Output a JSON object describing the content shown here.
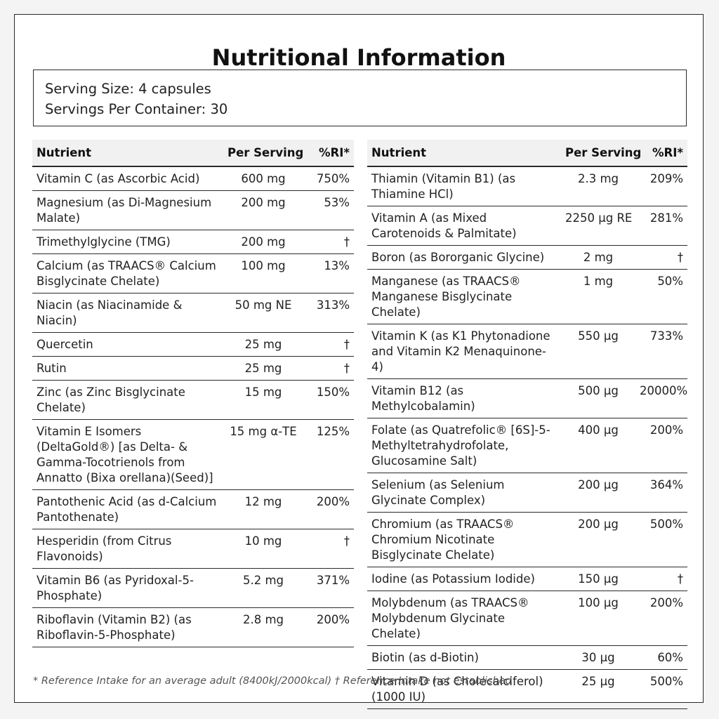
{
  "title": "Nutritional Information",
  "serving": {
    "size": "Serving Size: 4 capsules",
    "per_container": "Servings Per Container: 30"
  },
  "headers": {
    "nutrient": "Nutrient",
    "per_serving": "Per Serving",
    "ri": "%RI*"
  },
  "left_rows": [
    {
      "name": "Vitamin C (as Ascorbic Acid)",
      "amount": "600 mg",
      "ri": "750%"
    },
    {
      "name": "Magnesium (as Di-Magnesium Malate)",
      "amount": "200 mg",
      "ri": "53%"
    },
    {
      "name": "Trimethylglycine (TMG)",
      "amount": "200 mg",
      "ri": "†"
    },
    {
      "name": "Calcium (as TRAACS® Calcium Bisglycinate Chelate)",
      "amount": "100 mg",
      "ri": "13%"
    },
    {
      "name": "Niacin (as Niacinamide & Niacin)",
      "amount": "50 mg NE",
      "ri": "313%"
    },
    {
      "name": "Quercetin",
      "amount": "25 mg",
      "ri": "†"
    },
    {
      "name": "Rutin",
      "amount": "25 mg",
      "ri": "†"
    },
    {
      "name": "Zinc (as Zinc Bisglycinate Chelate)",
      "amount": "15 mg",
      "ri": "150%"
    },
    {
      "name": "Vitamin E Isomers (DeltaGold®) [as Delta- & Gamma-Tocotrienols from Annatto (Bixa orellana)(Seed)]",
      "amount": "15 mg α-TE",
      "ri": "125%"
    },
    {
      "name": "Pantothenic Acid (as d-Calcium Pantothenate)",
      "amount": "12 mg",
      "ri": "200%"
    },
    {
      "name": "Hesperidin (from Citrus Flavonoids)",
      "amount": "10 mg",
      "ri": "†"
    },
    {
      "name": "Vitamin B6 (as Pyridoxal-5-Phosphate)",
      "amount": "5.2 mg",
      "ri": "371%"
    },
    {
      "name": "Riboflavin (Vitamin B2) (as Riboflavin-5-Phosphate)",
      "amount": "2.8 mg",
      "ri": "200%"
    }
  ],
  "right_rows": [
    {
      "name": "Thiamin (Vitamin B1) (as Thiamine HCl)",
      "amount": "2.3 mg",
      "ri": "209%"
    },
    {
      "name": "Vitamin A (as Mixed Carotenoids & Palmitate)",
      "amount": "2250 µg RE",
      "ri": "281%"
    },
    {
      "name": "Boron (as Bororganic Glycine)",
      "amount": "2 mg",
      "ri": "†"
    },
    {
      "name": "Manganese (as TRAACS® Manganese Bisglycinate Chelate)",
      "amount": "1 mg",
      "ri": "50%"
    },
    {
      "name": "Vitamin K (as K1 Phytonadione and Vitamin K2 Menaquinone-4)",
      "amount": "550 µg",
      "ri": "733%"
    },
    {
      "name": "Vitamin B12 (as Methylcobalamin)",
      "amount": "500 µg",
      "ri": "20000%"
    },
    {
      "name": "Folate (as Quatrefolic® [6S]-5-Methyltetrahydrofolate, Glucosamine Salt)",
      "amount": "400 µg",
      "ri": "200%"
    },
    {
      "name": "Selenium (as Selenium Glycinate Complex)",
      "amount": "200 µg",
      "ri": "364%"
    },
    {
      "name": "Chromium (as TRAACS® Chromium Nicotinate Bisglycinate Chelate)",
      "amount": "200 µg",
      "ri": "500%"
    },
    {
      "name": "Iodine (as Potassium Iodide)",
      "amount": "150 µg",
      "ri": "†"
    },
    {
      "name": "Molybdenum (as TRAACS® Molybdenum Glycinate Chelate)",
      "amount": "100 µg",
      "ri": "200%"
    },
    {
      "name": "Biotin (as d-Biotin)",
      "amount": "30 µg",
      "ri": "60%"
    },
    {
      "name": "Vitamin D (as Cholecalciferol) (1000 IU)",
      "amount": "25 µg",
      "ri": "500%"
    }
  ],
  "footnote": "* Reference Intake for an average adult (8400kJ/2000kcal) † Reference Intake not established"
}
